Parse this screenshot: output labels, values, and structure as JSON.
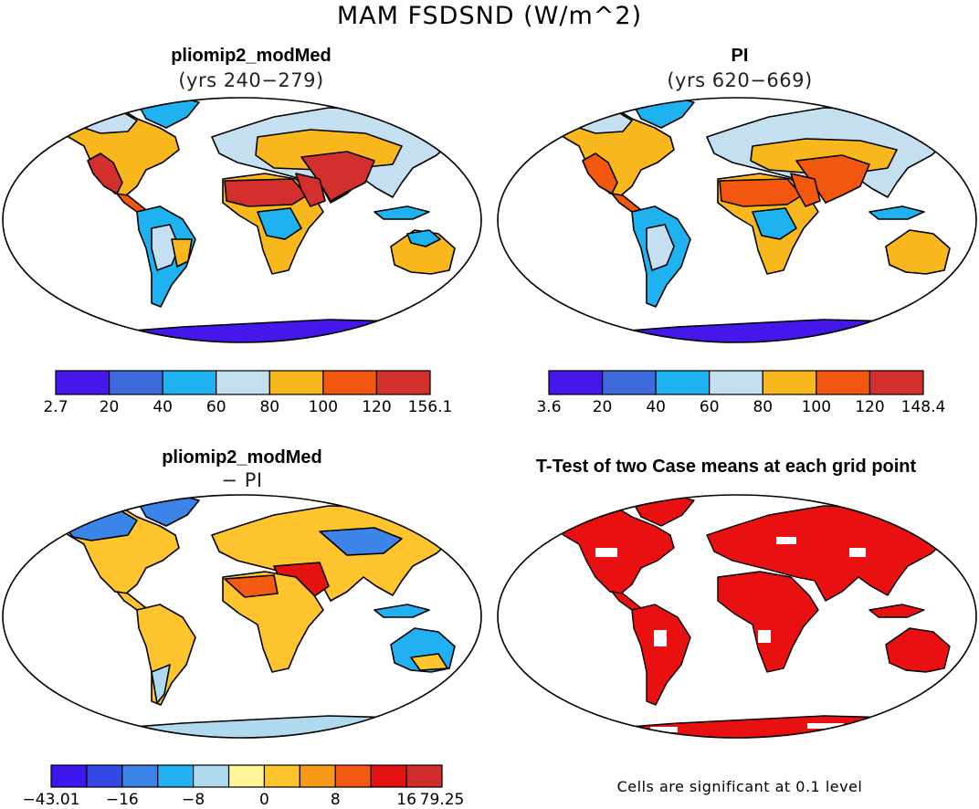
{
  "title": "MAM FSDSND (W/m^2)",
  "panels": [
    {
      "id": "p1",
      "title": "pliomip2_modMed",
      "subtitle": "(yrs 240−279)",
      "colorbar": {
        "colors": [
          "#4517ea",
          "#3d69dc",
          "#1fb2f0",
          "#c4dff0",
          "#f8b81d",
          "#f2560f",
          "#d32f2d"
        ],
        "ticks": [
          "2.7",
          "20",
          "40",
          "60",
          "80",
          "100",
          "120",
          "156.1"
        ]
      }
    },
    {
      "id": "p2",
      "title": "PI",
      "subtitle": "(yrs 620−669)",
      "colorbar": {
        "colors": [
          "#4517ea",
          "#3d69dc",
          "#1fb2f0",
          "#c4dff0",
          "#f8b81d",
          "#f2560f",
          "#d32f2d"
        ],
        "ticks": [
          "3.6",
          "20",
          "40",
          "60",
          "80",
          "100",
          "120",
          "148.4"
        ]
      }
    },
    {
      "id": "p3",
      "title": "pliomip2_modMed",
      "subtitle": "− PI",
      "colorbar": {
        "colors": [
          "#3f17ee",
          "#3349e3",
          "#3d84e8",
          "#21b0f2",
          "#aed9ee",
          "#fff498",
          "#fdc42d",
          "#f89a17",
          "#f55a12",
          "#e51212",
          "#d22d2d"
        ],
        "ticks": [
          "−43.01",
          "−16",
          "−8",
          "0",
          "8",
          "16",
          "79.25"
        ]
      }
    },
    {
      "id": "p4",
      "title": "T-Test of two Case means at each grid point",
      "note": "Cells are significant at 0.1 level"
    }
  ],
  "colors": {
    "significant": "#e81010",
    "land_outline": "#000000"
  }
}
